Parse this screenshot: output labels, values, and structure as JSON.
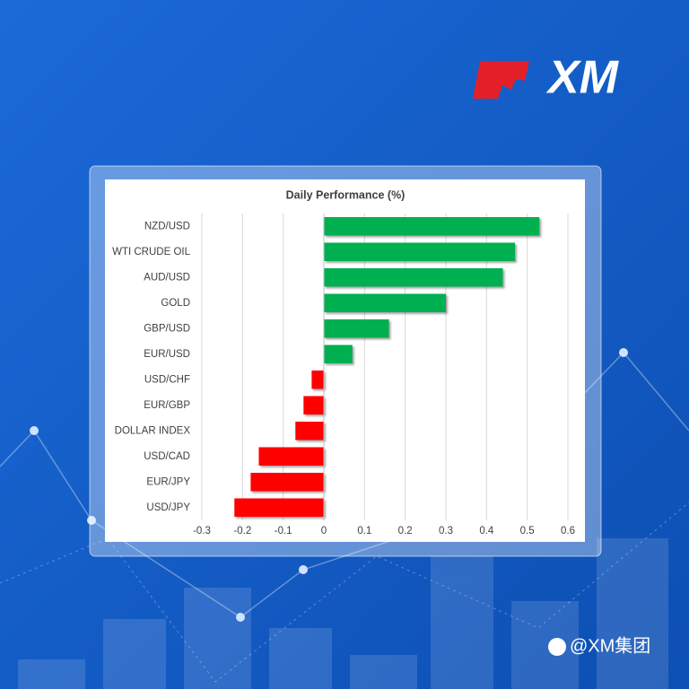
{
  "brand": {
    "logo": "XM",
    "watermark": "@XM集团"
  },
  "chart_data": {
    "type": "bar",
    "orientation": "horizontal",
    "title": "Daily Performance (%)",
    "categories": [
      "NZD/USD",
      "WTI CRUDE OIL",
      "AUD/USD",
      "GOLD",
      "GBP/USD",
      "EUR/USD",
      "USD/CHF",
      "EUR/GBP",
      "DOLLAR INDEX",
      "USD/CAD",
      "EUR/JPY",
      "USD/JPY"
    ],
    "values": [
      0.53,
      0.47,
      0.44,
      0.3,
      0.16,
      0.07,
      -0.03,
      -0.05,
      -0.07,
      -0.16,
      -0.18,
      -0.22
    ],
    "colors": {
      "positive": "#00b050",
      "negative": "#ff0000"
    },
    "xlim": [
      -0.3,
      0.6
    ],
    "xticks": [
      -0.3,
      -0.2,
      -0.1,
      0,
      0.1,
      0.2,
      0.3,
      0.4,
      0.5,
      0.6
    ],
    "grid": true
  }
}
